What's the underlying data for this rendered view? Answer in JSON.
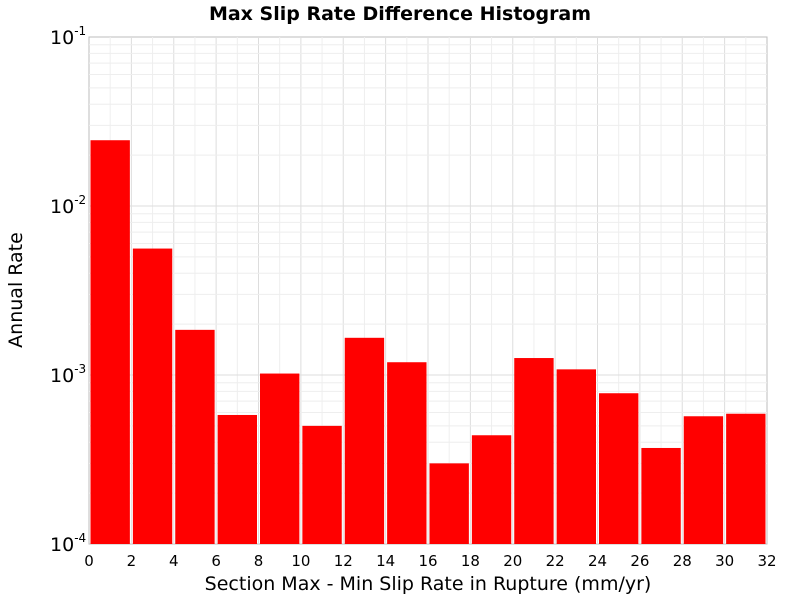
{
  "chart_data": {
    "type": "bar",
    "title": "Max Slip Rate Difference Histogram",
    "xlabel": "Section Max - Min Slip Rate in Rupture (mm/yr)",
    "ylabel": "Annual Rate",
    "xlim": [
      0,
      32
    ],
    "ylim": [
      0.0001,
      0.1
    ],
    "yscale": "log",
    "grid": true,
    "bar_color": "#ff0000",
    "xticks": [
      "0",
      "2",
      "4",
      "6",
      "8",
      "10",
      "12",
      "14",
      "16",
      "18",
      "20",
      "22",
      "24",
      "26",
      "28",
      "30",
      "32"
    ],
    "yticks": [
      {
        "base": "10",
        "exp": "-4"
      },
      {
        "base": "10",
        "exp": "-3"
      },
      {
        "base": "10",
        "exp": "-2"
      },
      {
        "base": "10",
        "exp": "-1"
      }
    ],
    "bins": [
      {
        "x0": 0,
        "x1": 2,
        "value": 0.0245
      },
      {
        "x0": 2,
        "x1": 4,
        "value": 0.0056
      },
      {
        "x0": 4,
        "x1": 6,
        "value": 0.00185
      },
      {
        "x0": 6,
        "x1": 8,
        "value": 0.00058
      },
      {
        "x0": 8,
        "x1": 10,
        "value": 0.00102
      },
      {
        "x0": 10,
        "x1": 12,
        "value": 0.0005
      },
      {
        "x0": 12,
        "x1": 14,
        "value": 0.00166
      },
      {
        "x0": 14,
        "x1": 16,
        "value": 0.00119
      },
      {
        "x0": 16,
        "x1": 18,
        "value": 0.0003
      },
      {
        "x0": 18,
        "x1": 20,
        "value": 0.00044
      },
      {
        "x0": 20,
        "x1": 22,
        "value": 0.00126
      },
      {
        "x0": 22,
        "x1": 24,
        "value": 0.00108
      },
      {
        "x0": 24,
        "x1": 26,
        "value": 0.00078
      },
      {
        "x0": 26,
        "x1": 28,
        "value": 0.00037
      },
      {
        "x0": 28,
        "x1": 30,
        "value": 0.00057
      },
      {
        "x0": 30,
        "x1": 32,
        "value": 0.00059
      }
    ]
  }
}
